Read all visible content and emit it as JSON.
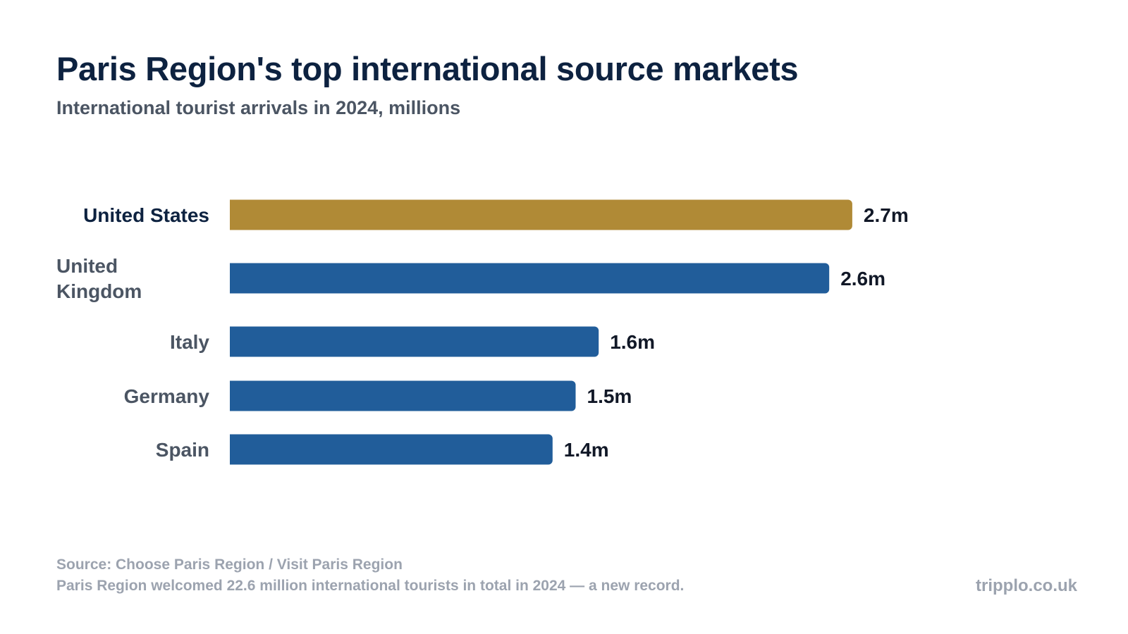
{
  "header": {
    "title": "Paris Region's top international source markets",
    "subtitle": "International tourist arrivals in 2024, millions"
  },
  "chart_data": {
    "type": "bar",
    "orientation": "horizontal",
    "title": "Paris Region's top international source markets",
    "subtitle": "International tourist arrivals in 2024, millions",
    "xlabel": "",
    "ylabel": "",
    "categories": [
      "United States",
      "United Kingdom",
      "Italy",
      "Germany",
      "Spain"
    ],
    "values": [
      2.7,
      2.6,
      1.6,
      1.5,
      1.4
    ],
    "value_labels": [
      "2.7m",
      "2.6m",
      "1.6m",
      "1.5m",
      "1.4m"
    ],
    "highlight_category": "United States",
    "colors": {
      "highlight": "#b08a36",
      "default": "#215d9a",
      "highlight_label": "#0d2240",
      "default_label": "#4b5563",
      "value_label": "#111827"
    },
    "grid": false,
    "legend": "none"
  },
  "footer": {
    "source": "Source: Choose Paris Region / Visit Paris Region",
    "note": "Paris Region welcomed 22.6 million international tourists in total in 2024 — a new record.",
    "brand": "tripplo.co.uk"
  }
}
